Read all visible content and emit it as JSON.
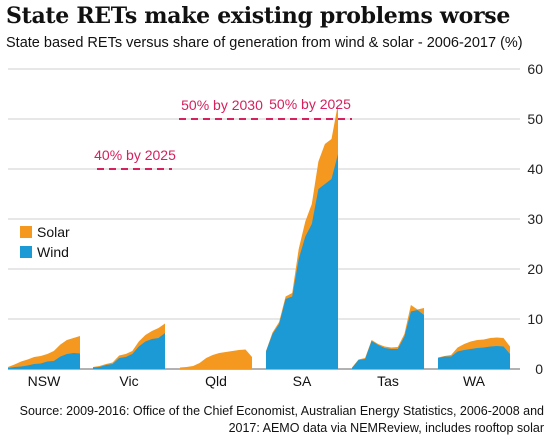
{
  "title": "State RETs make existing problems worse",
  "subtitle": "State based RETs versus share of generation from wind & solar - 2006-2017 (%)",
  "source": "Source: 2009-2016: Office of the Chief Economist, Australian Energy Statistics, 2006-2008 and 2017: AEMO data via NEMReview, includes rooftop solar",
  "colors": {
    "solar": "#f5981f",
    "wind": "#1b9ad6",
    "target": "#d6205f",
    "grid": "#cfcfcf"
  },
  "chart_data": {
    "type": "area",
    "stacked": true,
    "ylim": [
      0,
      60
    ],
    "yticks": [
      "0",
      "10",
      "20",
      "30",
      "40",
      "50",
      "60"
    ],
    "grid": true,
    "legend_position": "left",
    "series": [
      {
        "name": "Solar",
        "color": "#f5981f"
      },
      {
        "name": "Wind",
        "color": "#1b9ad6"
      }
    ],
    "states": [
      {
        "label": "NSW",
        "wind": [
          0.2,
          0.4,
          0.5,
          0.7,
          1.0,
          1.1,
          1.5,
          1.6,
          2.5,
          3.0,
          3.2,
          3.1
        ],
        "total": [
          0.4,
          0.9,
          1.5,
          1.9,
          2.4,
          2.6,
          3.0,
          3.6,
          4.9,
          5.8,
          6.2,
          6.6
        ]
      },
      {
        "label": "Vic",
        "wind": [
          0.3,
          0.4,
          0.8,
          1.0,
          2.2,
          2.4,
          3.0,
          4.5,
          5.5,
          6.0,
          6.2,
          7.2
        ],
        "total": [
          0.4,
          0.6,
          1.0,
          1.3,
          2.7,
          3.0,
          3.6,
          5.5,
          6.8,
          7.6,
          8.2,
          9.1
        ]
      },
      {
        "label": "Qld",
        "wind": [
          0,
          0,
          0,
          0,
          0,
          0,
          0,
          0,
          0,
          0,
          0,
          0
        ],
        "total": [
          0.3,
          0.4,
          0.6,
          1.2,
          2.2,
          2.8,
          3.2,
          3.4,
          3.6,
          3.8,
          3.9,
          2.4
        ]
      },
      {
        "label": "SA",
        "wind": [
          3.5,
          7.0,
          9.0,
          14.0,
          14.5,
          22.0,
          26.5,
          29.0,
          36.0,
          37.0,
          38.0,
          43.0
        ],
        "total": [
          3.6,
          7.3,
          9.4,
          14.5,
          15.2,
          24.0,
          29.5,
          33.0,
          41.5,
          45.0,
          46.0,
          53.0
        ]
      },
      {
        "label": "Tas",
        "wind": [
          0.2,
          1.8,
          2.0,
          5.6,
          4.8,
          4.2,
          4.0,
          4.0,
          6.5,
          11.5,
          11.8,
          10.8
        ],
        "total": [
          0.3,
          1.9,
          2.2,
          5.8,
          5.0,
          4.5,
          4.3,
          4.4,
          7.0,
          12.8,
          11.9,
          12.2
        ]
      },
      {
        "label": "WA",
        "wind": [
          2.2,
          2.5,
          2.5,
          3.5,
          3.8,
          4.0,
          4.2,
          4.3,
          4.5,
          4.6,
          4.5,
          3.0
        ],
        "total": [
          2.3,
          2.6,
          2.8,
          4.3,
          5.0,
          5.5,
          5.8,
          5.9,
          6.2,
          6.3,
          6.2,
          4.5
        ]
      }
    ],
    "targets": [
      {
        "label": "40% by 2025",
        "value": 40,
        "state": "NSW_Vic"
      },
      {
        "label": "50% by 2030",
        "value": 50,
        "state": "Qld"
      },
      {
        "label": "50% by 2025",
        "value": 50,
        "state": "SA"
      }
    ]
  }
}
